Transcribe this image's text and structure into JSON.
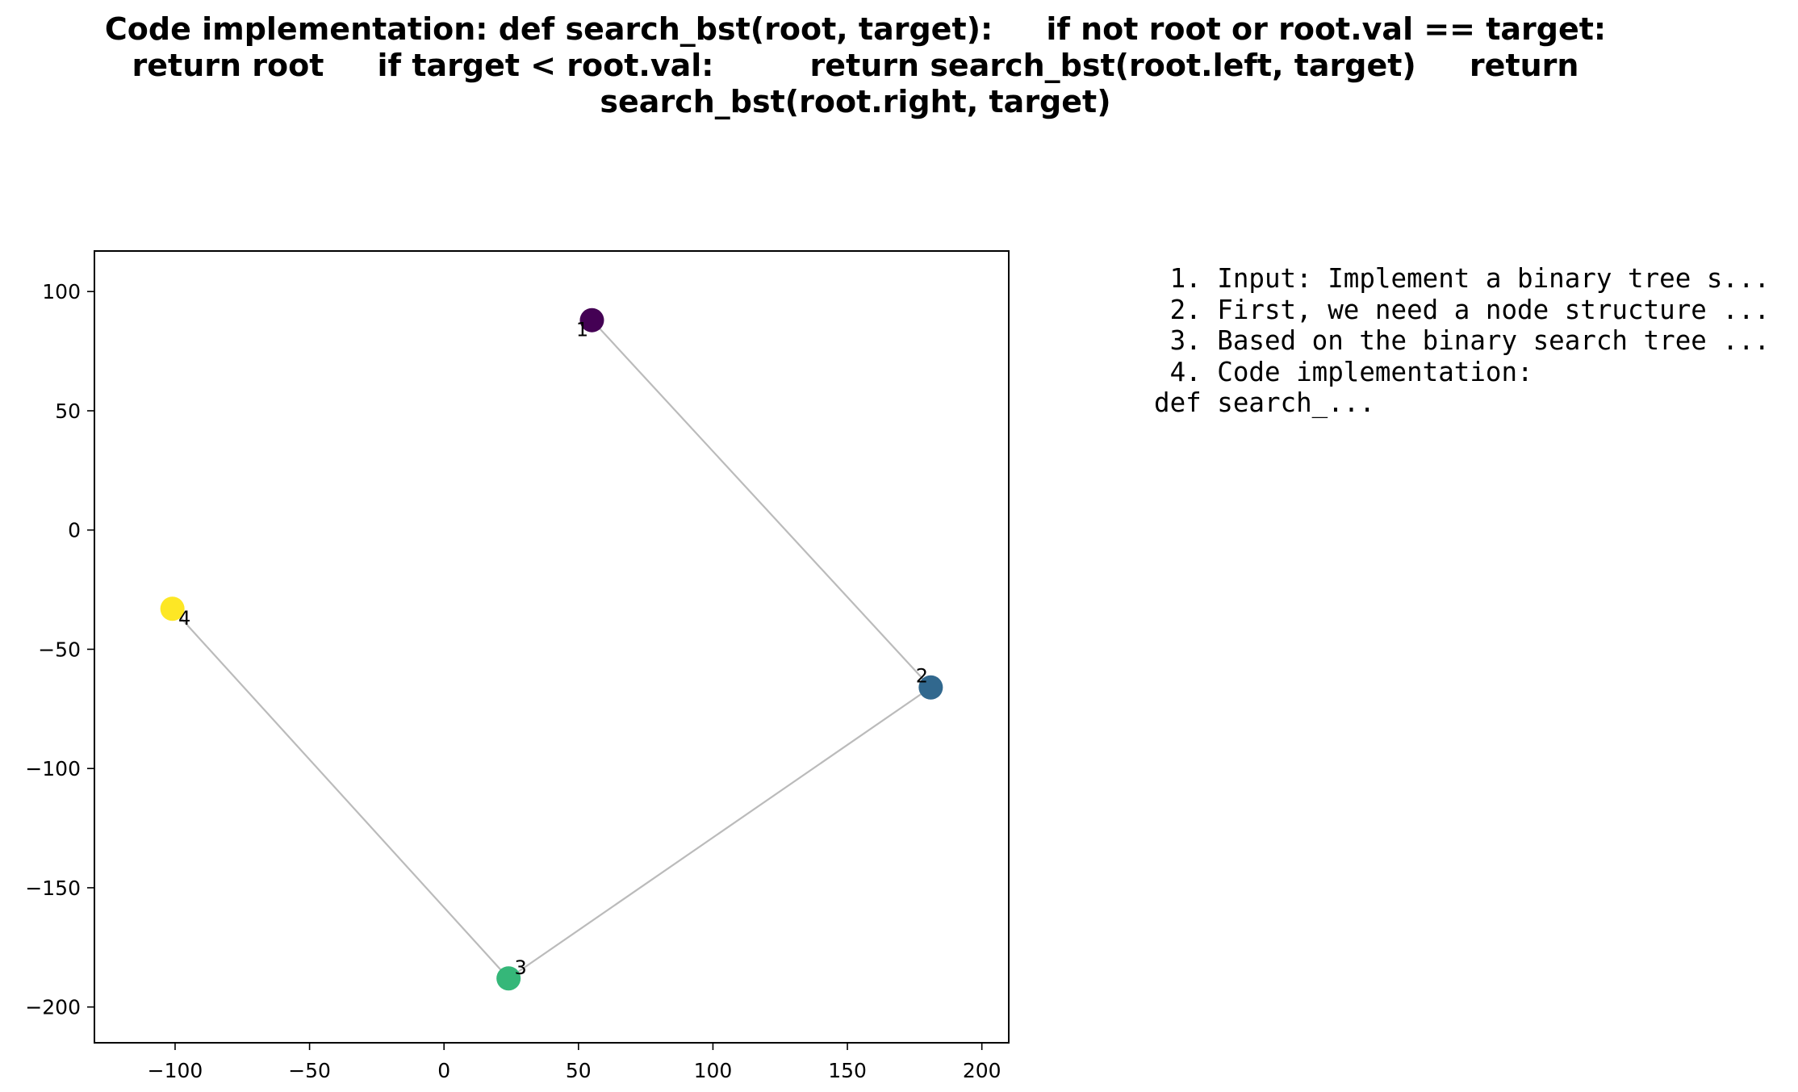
{
  "chart_data": {
    "type": "scatter",
    "title": "Code implementation: def search_bst(root, target):     if not root or root.val == target:         return root     if target < root.val:         return search_bst(root.left, target)     return search_bst(root.right, target)",
    "xlabel": "",
    "ylabel": "",
    "xlim": [
      -130,
      210
    ],
    "ylim": [
      -215,
      117
    ],
    "xticks": [
      -100,
      -50,
      0,
      50,
      100,
      150,
      200
    ],
    "yticks": [
      100,
      50,
      0,
      -50,
      -100,
      -150,
      -200
    ],
    "xtick_labels": [
      "−100",
      "−50",
      "0",
      "50",
      "100",
      "150",
      "200"
    ],
    "ytick_labels": [
      "100",
      "50",
      "0",
      "−50",
      "−100",
      "−150",
      "−200"
    ],
    "grid": false,
    "points": [
      {
        "label": "1",
        "x": 55,
        "y": 88,
        "color": "#440154"
      },
      {
        "label": "2",
        "x": 181,
        "y": -66,
        "color": "#31688e"
      },
      {
        "label": "3",
        "x": 24,
        "y": -188,
        "color": "#35b779"
      },
      {
        "label": "4",
        "x": -101,
        "y": -33,
        "color": "#fde725"
      }
    ],
    "edges": [
      [
        0,
        1
      ],
      [
        1,
        2
      ],
      [
        2,
        3
      ]
    ],
    "edge_color": "#bbbbbb"
  },
  "side_text": " 1. Input: Implement a binary tree s...\n 2. First, we need a node structure ...\n 3. Based on the binary search tree ...\n 4. Code implementation:\ndef search_..."
}
